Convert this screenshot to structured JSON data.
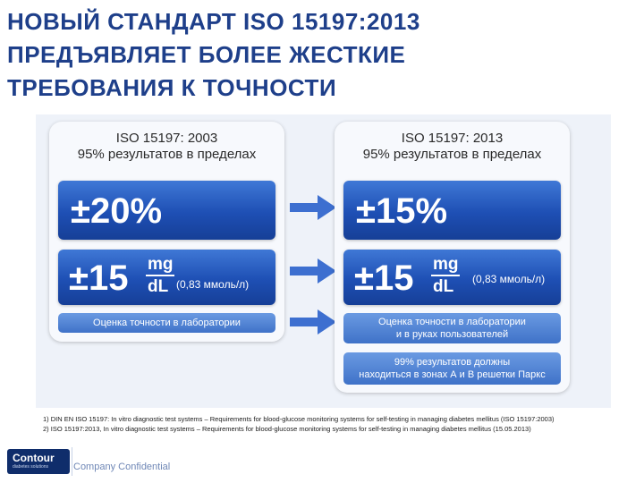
{
  "title": {
    "lines": [
      "НОВЫЙ СТАНДАРТ  ISO 15197:2013",
      "ПРЕДЪЯВЛЯЕТ БОЛЕЕ ЖЕСТКИЕ",
      "ТРЕБОВАНИЯ К ТОЧНОСТИ"
    ]
  },
  "left": {
    "heading": [
      "ISO 15197: 2003",
      "95% результатов в пределах"
    ],
    "percent": "±20%",
    "mgdl_value": "±15",
    "unit_top": "mg",
    "unit_bottom": "dL",
    "mmol": "(0,83 ммоль/л)",
    "note": "Оценка точности в лаборатории"
  },
  "right": {
    "heading": [
      "ISO 15197: 2013",
      "95% результатов в пределах"
    ],
    "percent": "±15%",
    "mgdl_value": "±15",
    "unit_top": "mg",
    "unit_bottom": "dL",
    "mmol": "(0,83 ммоль/л)",
    "note": [
      "Оценка точности в лаборатории",
      "и в руках пользователей"
    ],
    "extra": [
      "99% результатов должны",
      "находиться в зонах А и В решетки Паркс"
    ]
  },
  "footnotes": [
    "1) DIN EN ISO 15197: In vitro diagnostic test systems – Requirements for blood-glucose monitoring systems for self-testing in managing diabetes mellitus (ISO 15197:2003)",
    "2) ISO 15197:2013, In vitro diagnostic test systems – Requirements for blood-glucose monitoring systems for self-testing in managing diabetes mellitus (15.05.2013)"
  ],
  "footer": {
    "logo": "Contour",
    "logo_sub": "diabetes solutions",
    "confidential": "Company Confidential"
  },
  "colors": {
    "title": "#1e3f8a",
    "bar": "#1e4fb4",
    "arrow": "#3d6fd0"
  },
  "icons": {
    "arrow": "right-arrow-icon"
  }
}
